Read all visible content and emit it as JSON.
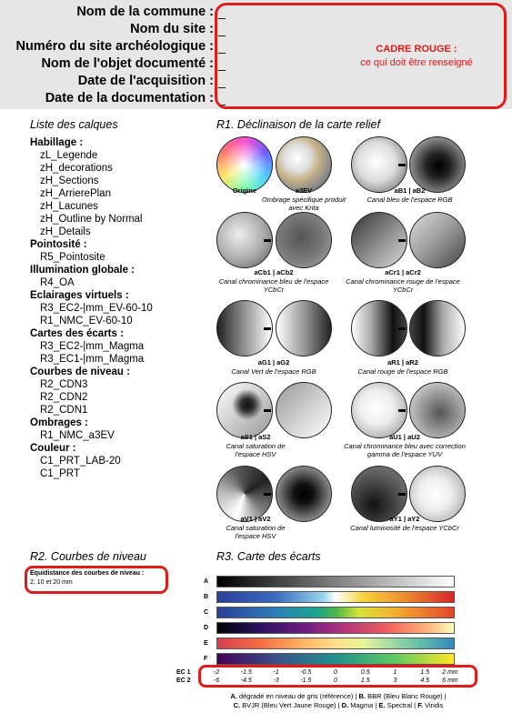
{
  "header": {
    "fields": [
      {
        "label": "Nom de la commune :",
        "value": "_"
      },
      {
        "label": "Nom du site :",
        "value": "_"
      },
      {
        "label": "Numéro du site archéologique :",
        "value": "_"
      },
      {
        "label": "Nom de l'objet documenté :",
        "value": "_"
      },
      {
        "label": "Date de l'acquisition :",
        "value": "_"
      },
      {
        "label": "Date de la documentation :",
        "value": "_"
      }
    ],
    "red_title": "CADRE ROUGE :",
    "red_subtitle": "ce qui doit être renseigné"
  },
  "layers": {
    "title": "Liste des calques",
    "groups": [
      {
        "name": "Habillage :",
        "items": [
          "zL_Legende",
          "zH_decorations",
          "zH_Sections",
          "zH_ArrierePlan",
          "zH_Lacunes",
          "zH_Outline by Normal",
          "zH_Details"
        ]
      },
      {
        "name": "Pointosité :",
        "items": [
          "R5_Pointosite"
        ]
      },
      {
        "name": "Illumination globale :",
        "items": [
          "R4_OA"
        ]
      },
      {
        "name": "Eclairages virtuels :",
        "items": [
          "R3_EC2-|mm_EV-60-10",
          "R1_NMC_EV-60-10"
        ]
      },
      {
        "name": "Cartes des écarts :",
        "items": [
          "R3_EC2-|mm_Magma",
          "R3_EC1-|mm_Magma"
        ]
      },
      {
        "name": "Courbes de niveau :",
        "items": [
          "R2_CDN3",
          "R2_CDN2",
          "R2_CDN1"
        ]
      },
      {
        "name": "Ombrages :",
        "items": [
          "R1_NMC_a3EV"
        ]
      },
      {
        "name": "Couleur :",
        "items": [
          "C1_PRT_LAB-20",
          "C1_PRT"
        ]
      }
    ]
  },
  "r1": {
    "title": "R1. Déclinaison de la carte relief",
    "items": {
      "origine": {
        "code": "Origine",
        "desc": ""
      },
      "a3ev": {
        "code": "a3EV",
        "desc": "Ombrage spécifique produit avec Krita"
      },
      "ab": {
        "code": "aB1 | aB2",
        "desc": "Canal bleu de l'espace RGB"
      },
      "acb": {
        "code": "aCb1 | aCb2",
        "desc": "Canal chrominance bleu de l'espace YCbCr"
      },
      "acr": {
        "code": "aCr1 | aCr2",
        "desc": "Canal chrominance rouge de l'espace YCbCr"
      },
      "ag": {
        "code": "aG1 | aG2",
        "desc": "Canal Vert de l'espace RGB"
      },
      "ar": {
        "code": "aR1 | aR2",
        "desc": "Canal rouge de l'espace RGB"
      },
      "as": {
        "code": "aS1 | aS2",
        "desc": "Canal saturation de l'espace HSV"
      },
      "au": {
        "code": "aU1 | aU2",
        "desc": "Canal chrominance bleu avec correction gamma de l'espace YUV"
      },
      "av": {
        "code": "aV1 | aV2",
        "desc": "Canal saturation de l'espace HSV"
      },
      "ay": {
        "code": "aY1 | aY2",
        "desc": "Canal luminosité de l'espace YCbCr"
      }
    }
  },
  "r2": {
    "title": "R2. Courbes de niveau",
    "box_label": "Equidistance des courbes de niveau :",
    "box_value": "2, 10 et 20 mm"
  },
  "r3": {
    "title": "R3. Carte des écarts",
    "bars": [
      "A",
      "B",
      "C",
      "D",
      "E",
      "F"
    ],
    "ec1_label": "EC 1",
    "ec2_label": "EC 2",
    "ec1_ticks": [
      "-2",
      "-1.5",
      "-1",
      "-0.5",
      "0",
      "0.5",
      "1",
      "1.5",
      "2 mm"
    ],
    "ec2_ticks": [
      "-6",
      "-4.5",
      "-3",
      "-1.5",
      "0",
      "1.5",
      "3",
      "4.5",
      "6 mm"
    ],
    "legend_line1": [
      {
        "key": "A.",
        "text": " dégradé en niveau de gris (référence) | "
      },
      {
        "key": "B.",
        "text": " BBR (Bleu Blanc Rouge) |"
      }
    ],
    "legend_line2": [
      {
        "key": "C.",
        "text": " BVJR (Bleu Vert Jaune Rouge) | "
      },
      {
        "key": "D.",
        "text": " Magma | "
      },
      {
        "key": "E.",
        "text": " Spectral | "
      },
      {
        "key": "F.",
        "text": " Viridis"
      }
    ]
  }
}
